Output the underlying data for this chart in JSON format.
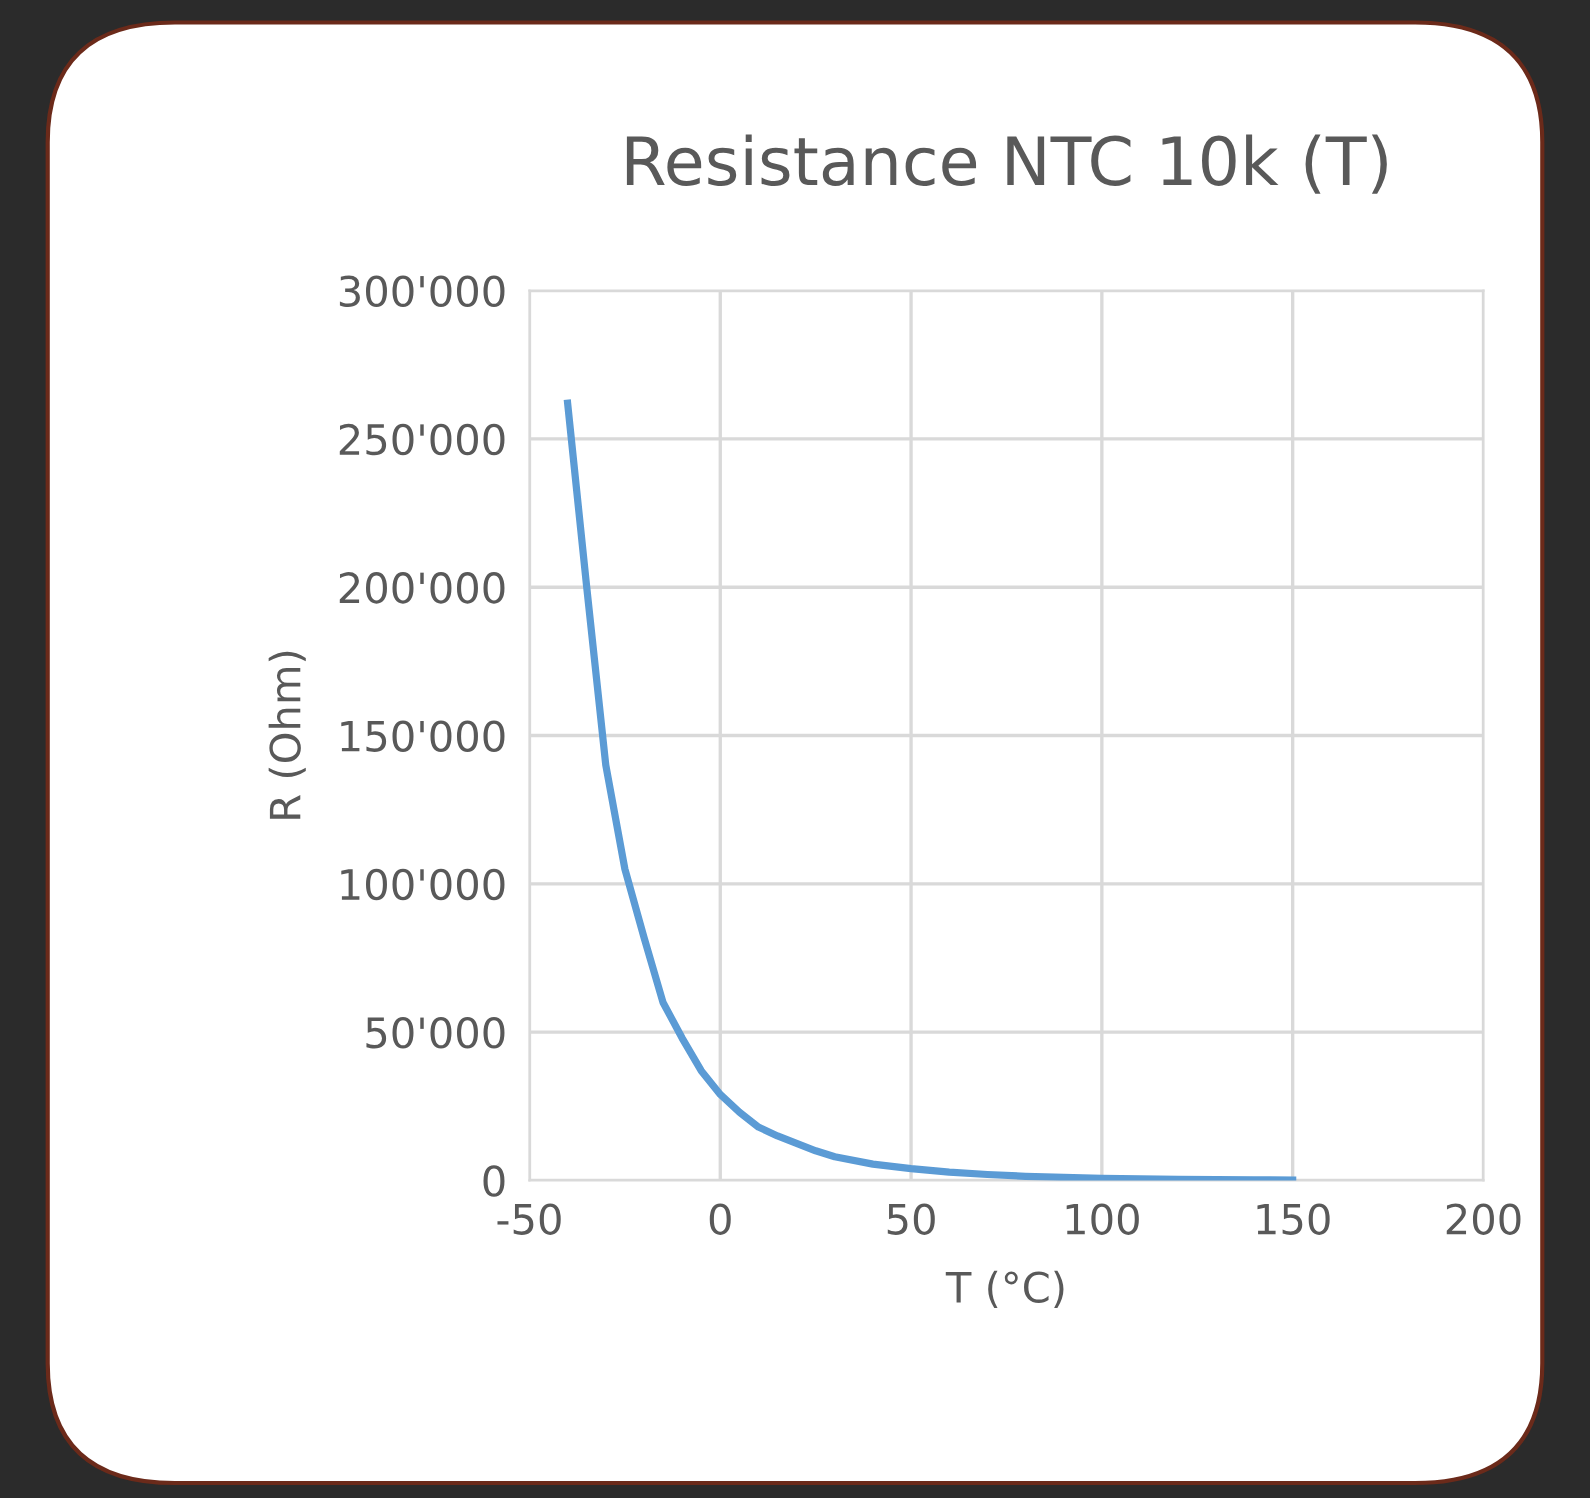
{
  "chart_data": {
    "type": "line",
    "title": "Resistance NTC 10k (T)",
    "xlabel": "T (°C)",
    "ylabel": "R (Ohm)",
    "xlim": [
      -50,
      200
    ],
    "xticks": [
      -50,
      0,
      50,
      100,
      150,
      200
    ],
    "ylim": [
      0,
      300000
    ],
    "yticks": [
      {
        "value": 0,
        "label": "0"
      },
      {
        "value": 50000,
        "label": "50'000"
      },
      {
        "value": 100000,
        "label": "100'000"
      },
      {
        "value": 150000,
        "label": "150'000"
      },
      {
        "value": 200000,
        "label": "200'000"
      },
      {
        "value": 250000,
        "label": "250'000"
      },
      {
        "value": 300000,
        "label": "300'000"
      }
    ],
    "grid": true,
    "marker": "none",
    "line_style": "solid",
    "series": [
      {
        "color": "#5b9bd5",
        "x": [
          -40,
          -35,
          -30,
          -25,
          -20,
          -15,
          -10,
          -5,
          0,
          5,
          10,
          15,
          20,
          25,
          30,
          40,
          50,
          60,
          70,
          80,
          90,
          100,
          110,
          120,
          130,
          140,
          150
        ],
        "values": [
          262000,
          200000,
          140000,
          105000,
          82000,
          60000,
          48000,
          37000,
          29000,
          23000,
          18000,
          15000,
          12500,
          10000,
          8000,
          5500,
          4000,
          2800,
          2000,
          1400,
          1000,
          700,
          500,
          400,
          300,
          200,
          150
        ]
      }
    ]
  }
}
